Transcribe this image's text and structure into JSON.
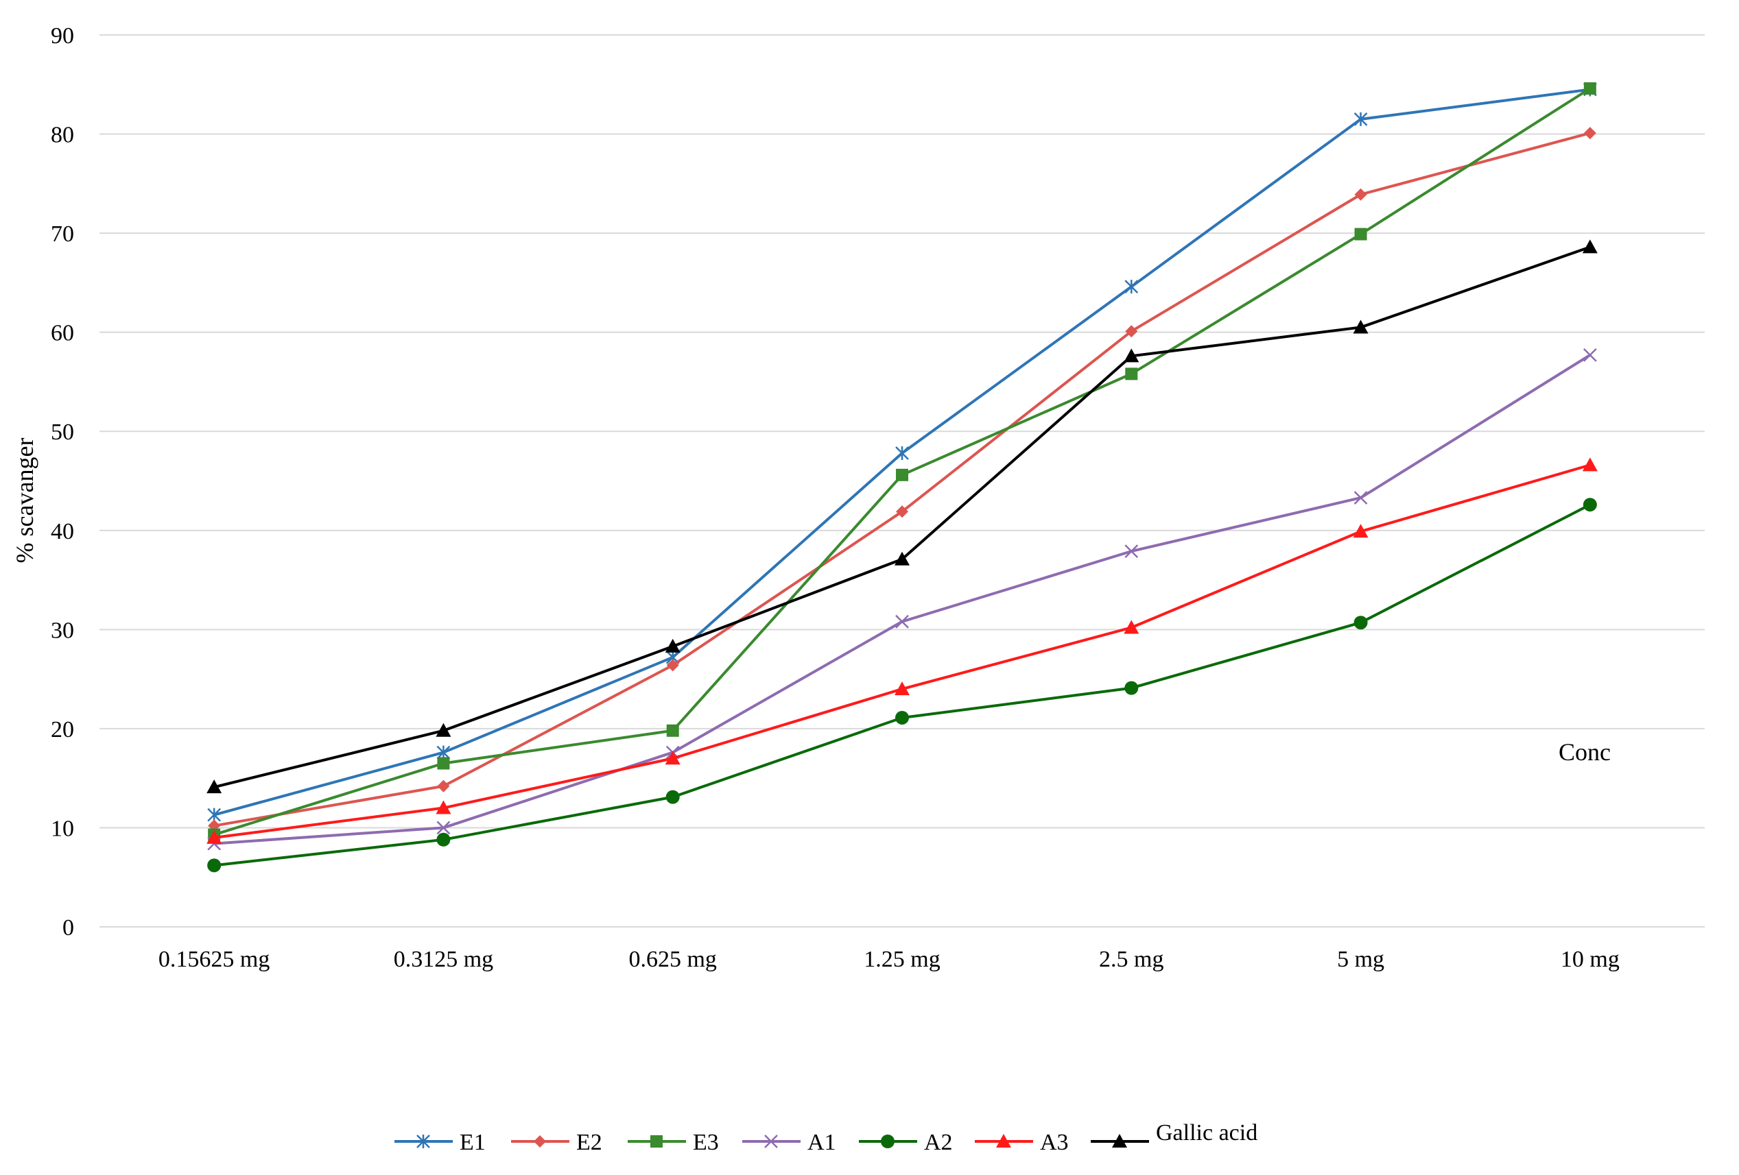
{
  "chart_data": {
    "type": "line",
    "title": "",
    "xlabel": "",
    "ylabel": "% scavanger",
    "annotation": "Conc",
    "categories": [
      "0.15625 mg",
      "0.3125 mg",
      "0.625 mg",
      "1.25 mg",
      "2.5 mg",
      "5 mg",
      "10 mg"
    ],
    "yticks": [
      0,
      10,
      20,
      30,
      40,
      50,
      60,
      70,
      80,
      90
    ],
    "ylim": [
      0,
      90
    ],
    "grid": "horizontal",
    "legend_position": "bottom",
    "series": [
      {
        "name": "E1",
        "color": "#2E75B6",
        "marker": "star",
        "values": [
          11.3,
          17.6,
          27.2,
          47.8,
          64.6,
          81.5,
          84.5
        ]
      },
      {
        "name": "E2",
        "color": "#DD5550",
        "marker": "diamond",
        "values": [
          10.2,
          14.2,
          26.4,
          41.9,
          60.1,
          73.9,
          80.1
        ]
      },
      {
        "name": "E3",
        "color": "#3A8A2E",
        "marker": "square",
        "values": [
          9.3,
          16.5,
          19.8,
          45.6,
          55.8,
          69.9,
          84.6
        ]
      },
      {
        "name": "A1",
        "color": "#8E6BB0",
        "marker": "x",
        "values": [
          8.4,
          10.0,
          17.6,
          30.8,
          37.9,
          43.3,
          57.7
        ]
      },
      {
        "name": "A2",
        "color": "#0A6A0A",
        "marker": "circle",
        "values": [
          6.2,
          8.8,
          13.1,
          21.1,
          24.1,
          30.7,
          42.6
        ]
      },
      {
        "name": "A3",
        "color": "#FF1A1A",
        "marker": "triangle",
        "values": [
          9.0,
          12.0,
          17.0,
          24.0,
          30.2,
          39.9,
          46.6
        ]
      },
      {
        "name": "Gallic acid",
        "color": "#000000",
        "marker": "triangle",
        "values": [
          14.1,
          19.8,
          28.3,
          37.1,
          57.6,
          60.5,
          68.6
        ]
      }
    ]
  }
}
